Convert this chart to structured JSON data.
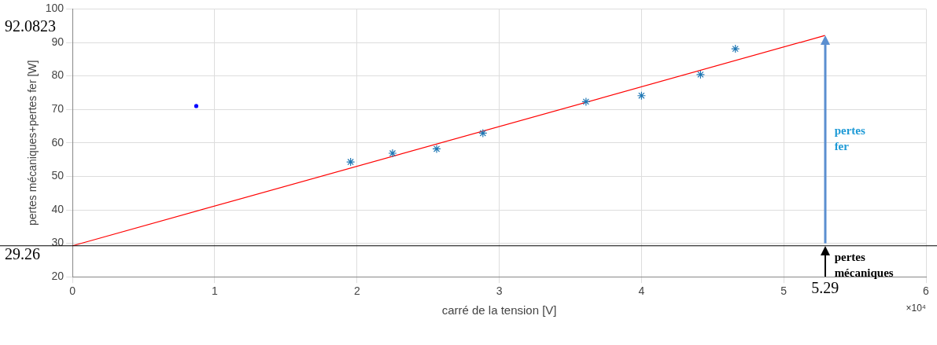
{
  "chart_data": {
    "type": "scatter",
    "xlabel": "carré de la tension [V]",
    "ylabel": "pertes mécaniques+pertes fer [W]",
    "xlim": [
      0,
      6
    ],
    "xticks": [
      0,
      1,
      2,
      3,
      4,
      5,
      6
    ],
    "ylim": [
      20,
      100
    ],
    "yticks": [
      20,
      30,
      40,
      50,
      60,
      70,
      80,
      90,
      100
    ],
    "grid": true,
    "legend": false,
    "marker": "cross",
    "series": [
      {
        "color": "#1f77b4",
        "x": [
          1.955,
          2.25,
          2.56,
          2.885,
          3.61,
          4.0,
          4.415,
          4.66
        ],
        "values": [
          54.3,
          56.9,
          58.2,
          62.9,
          72.3,
          74.1,
          80.4,
          88.1
        ]
      },
      {
        "color": "#0000ff",
        "marker": "circle",
        "x": [
          0.87
        ],
        "values": [
          71
        ]
      },
      {
        "type": "line",
        "color": "#ff0000",
        "marker": "none",
        "x": [
          0,
          5.29
        ],
        "values": [
          29.26,
          92.0823
        ]
      }
    ],
    "ref_lines": [
      {
        "axis": "y",
        "value": 29.26,
        "label": "29.26",
        "color": "#000000"
      }
    ],
    "annotations": [
      "92.0823",
      "5.29",
      "pertes fer",
      "pertes mécaniques",
      "×10⁴"
    ]
  }
}
